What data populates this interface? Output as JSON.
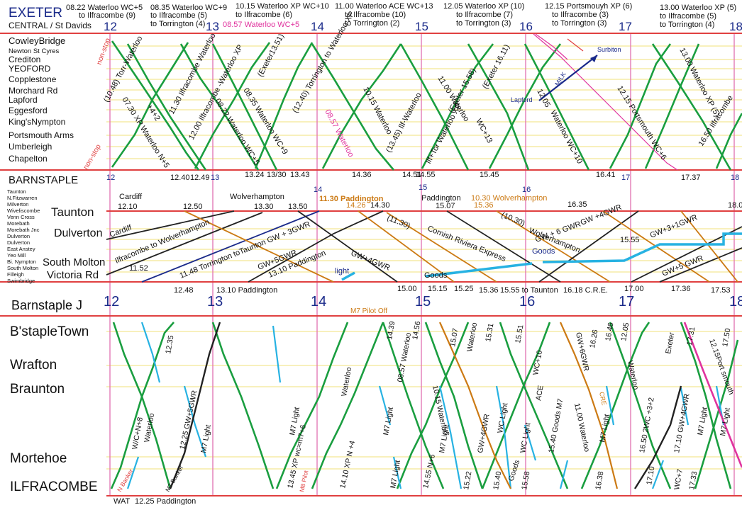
{
  "header": {
    "origin_station": "EXETER",
    "origin_sub": "CENTRAL / St Davids",
    "notes": [
      [
        "08.22 Waterloo WC+5",
        "to Ilfracombe (9)"
      ],
      [
        "08.35 Waterloo WC+9",
        "to Ilfracombe (5)",
        "to Torrington (4)"
      ],
      [
        "10.15 Waterloo XP WC+10",
        "to Ilfracombe (6)"
      ],
      [
        "08.57 Waterloo  WC+5"
      ],
      [
        "11.00 Waterloo ACE  WC+13",
        "to Ilfracombe (10)",
        "to Torrington (2)"
      ],
      [
        "12.05 Waterloo XP (10)",
        "to Ilfracombe (7)",
        "to Torrington (3)"
      ],
      [
        "12.15 Portsmouyh XP (6)",
        "to Ilfracombe (3)",
        "to Torrington (3)"
      ],
      [
        "13.00 Waterloo XP (5)",
        "to Ilfracombe (5)",
        "to Torrington (4)"
      ]
    ]
  },
  "hours": [
    "12",
    "13",
    "14",
    "15",
    "16",
    "17",
    "18"
  ],
  "exeter_section": {
    "stations": [
      "CowleyBridge",
      "Newton St Cyres",
      "Crediton",
      "YEOFORD",
      "Copplestone",
      "Morchard Rd",
      "Lapford",
      "Eggesford",
      "King'sNympton",
      "Portsmouth Arms",
      "Umberleigh",
      "Chapelton"
    ],
    "labels": [
      "non-stop",
      "(10.48) Torr-Waterloo",
      "07.30 XP Waterloo N+5",
      "+4+2",
      "11.30 Ilfracombe Waterloo",
      "12.00 Ilfracombe -Waterloo XP",
      "08.22 Waterloo WC+5",
      "08.35 Waterloo WC+9",
      "(Exeter13.51)",
      "(12.40) Torrington to Waterloo XP",
      "08.57 Waterloo",
      "10.15 Waterloo",
      "(13.45) Ilf-Waterloo",
      "Ilf+Tor Waterloo XP",
      "11.00 Waterloo",
      "(Exeter 15.58)",
      "WC+13",
      "(Exeter 16.11)",
      "12.05",
      "Waterloo WC+10",
      "MILK",
      "Surbiton",
      "Lapford",
      "12.15 Portsmouth WC+6",
      "13.00 Waterloo XP (5)",
      "16.50 Ilfracombe"
    ]
  },
  "barnstaple_section": {
    "title": "BARNSTAPLE",
    "bar_times": [
      "12.40",
      "12.49",
      "13.24",
      "13/30",
      "13.43",
      "14.36",
      "14.51",
      "14.55",
      "15.45",
      "16.41",
      "17.37"
    ],
    "stations_small": [
      "Taunton",
      "N.Fitzwarren",
      "Milverton",
      "Wiveliscombe",
      "Venn Cross",
      "Morebath",
      "Morebath Jnc",
      "Dulverton",
      "Dulverton",
      "East Anstey",
      "Yeo Mill",
      "Bi. Nympton",
      "South Molton",
      "Filleigh",
      "Swimbridge"
    ],
    "stations_large": [
      "Taunton",
      "Dulverton",
      "South Molton",
      "Victoria Rd"
    ],
    "top_labels": [
      "Cardiff",
      "12.10",
      "12.50",
      "Wolverhampton",
      "13.30",
      "13.50",
      "11.30 Paddington",
      "14.26",
      "14.30",
      "Paddington",
      "15.07",
      "10.30 Wolverhampton",
      "15.36",
      "16.35",
      "18.0"
    ],
    "mid_labels": [
      "Cardiff",
      "Ilfracombe to Wolverhampton",
      "11.52",
      "11.48 Torrington toTaunton GW + 3GWR",
      "GW+5GWR",
      "13.10  Paddington",
      "light",
      "GW+4GWR",
      "(11.30)",
      "Cornish Riviera Express",
      "Goods",
      "(10.30)",
      "Wolverhampton",
      "GW + 6 GWR",
      "Goods",
      "GW +4GWR",
      "15.55",
      "GW+3+1GWR",
      "GW+5 GWR"
    ],
    "bottom_labels": [
      "12.48",
      "13.10  Paddington",
      "15.00",
      "15.15",
      "15.25",
      "15.36",
      "15.55 to Taunton",
      "16.18 C.R.E.",
      "17.00",
      "17.36",
      "17.53"
    ]
  },
  "ilfracombe_section": {
    "title": "Barnstaple J",
    "pilot_note": "M7  Pilot Off",
    "stations": [
      "B'stapleTown",
      "Wrafton",
      "Braunton",
      "Mortehoe",
      "ILFRACOMBE"
    ],
    "labels": [
      "12.35",
      "W/C+N+8",
      "Waterloo",
      "12.25 GW+5GWR",
      "M7 Light",
      "N Banker",
      "M7 Banker",
      "M7 Light",
      "13.45 XP wc=m7+6",
      "M8 Pilot",
      "Waterloo",
      "14.10 XP N +4",
      "14.39",
      "08.57 Waterloo",
      "14.56",
      "M7 Light",
      "M7 Light",
      "14.55 N+6",
      "10.15 Waterloo",
      "15.07",
      "Waterloo",
      "15.31",
      "M7 Light",
      "GW+4GWR",
      "15.22",
      "WC Light",
      "15.40",
      "Goods",
      "15.51",
      "WC+10",
      "ACE",
      "WC Light",
      "15.58",
      "15.40 Goods  M7",
      "11.00 Waterloo",
      "GW+6GWR",
      "16.26",
      "16.46",
      "CRE",
      "M7 Light",
      "16.38",
      "12.05",
      "Waterloo",
      "16.50 2WC +3+2",
      "Exeter",
      "17.10 GW+4GWR",
      "M7 Light",
      "17.10",
      "17.31",
      "WC+7",
      "17.33",
      "17.50",
      "12.15Port smouth",
      "M7 Light"
    ],
    "footer": [
      "WAT",
      "12.25 Paddington"
    ]
  },
  "colors": {
    "southern": "#1a9e40",
    "branch": "#27b2e2",
    "gwr": "#222222",
    "western": "#cc7a14",
    "milk": "#e0339e",
    "frame": "#e04040",
    "hour": "#e070b0",
    "station_line": "#f2e27a",
    "paddington_up": "#1a2a8a",
    "heading": "#1a2a8a"
  }
}
